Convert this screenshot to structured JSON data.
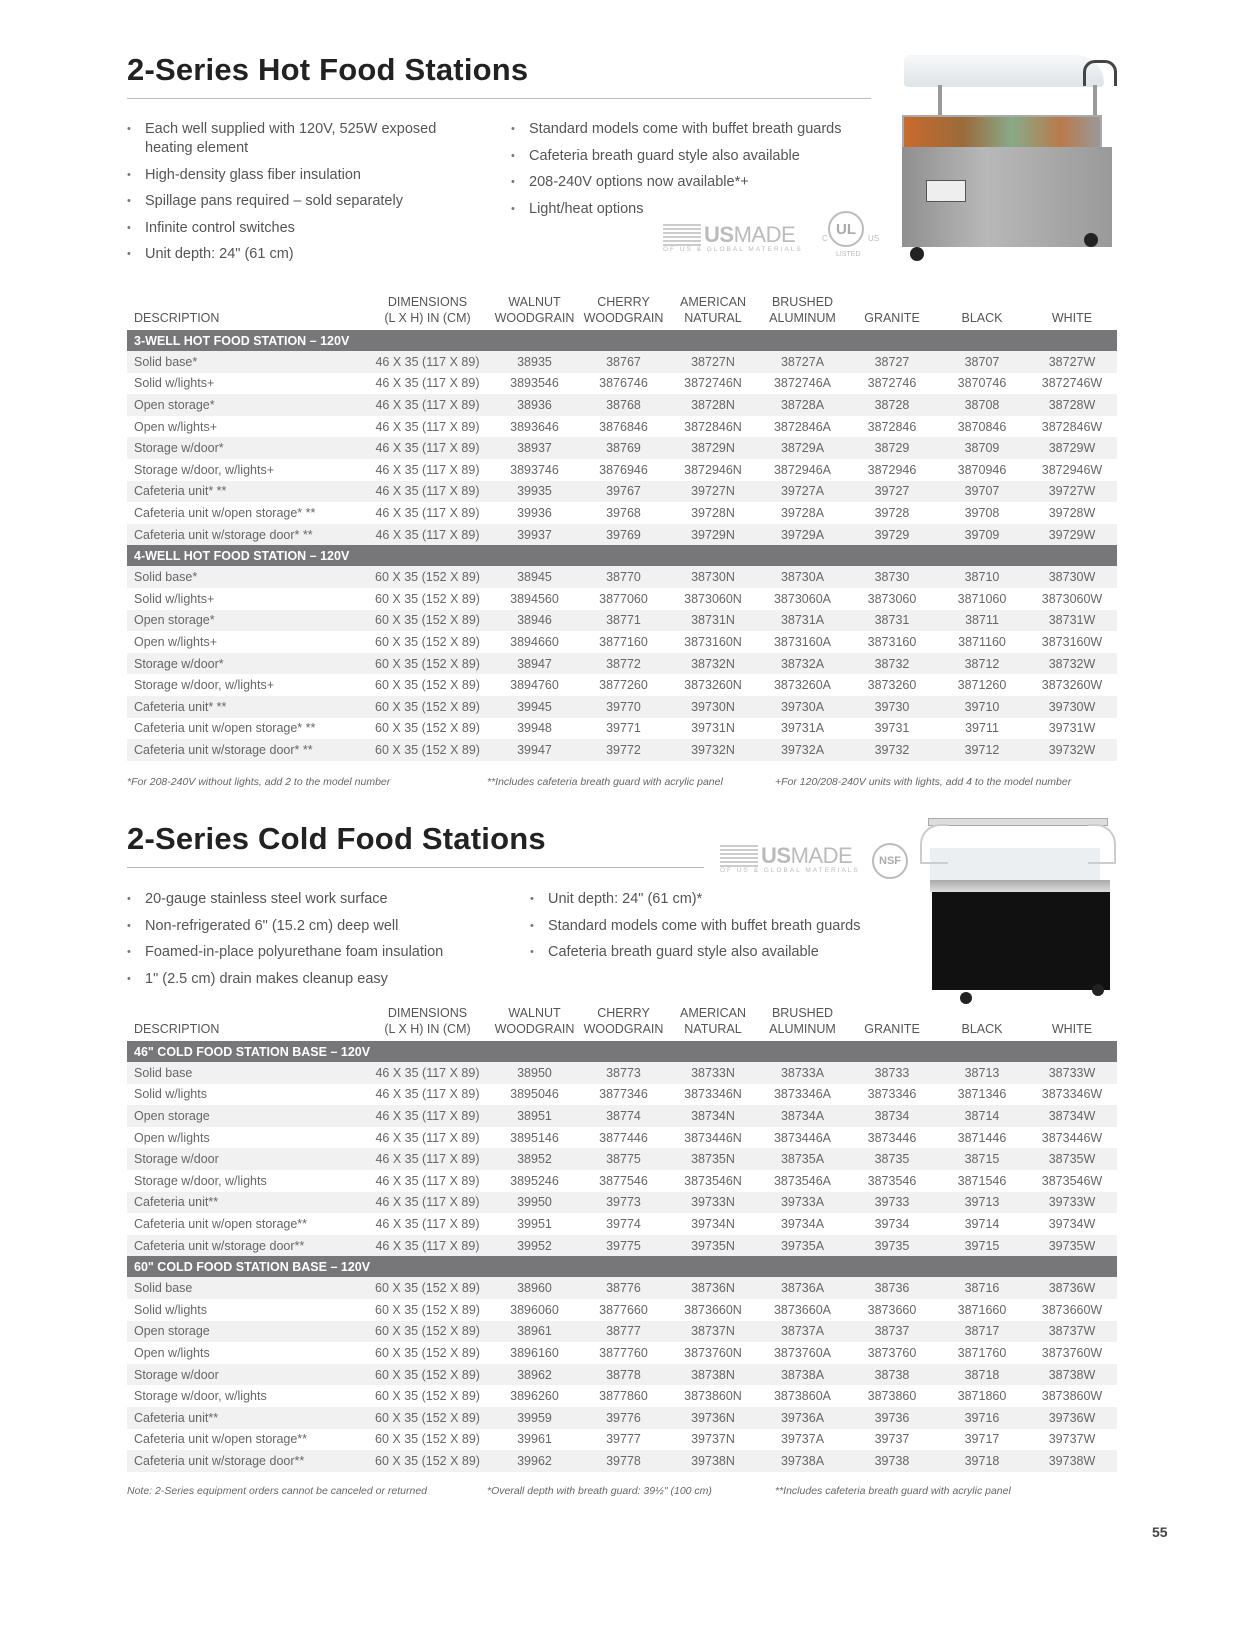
{
  "hot": {
    "title": "2-Series  Hot Food Stations",
    "bullets_left": [
      "Each well supplied with 120V, 525W exposed heating element",
      "High-density glass fiber insulation",
      "Spillage pans required – sold separately",
      "Infinite control switches",
      "Unit depth: 24\" (61 cm)"
    ],
    "bullets_right": [
      "Standard models come with buffet breath guards",
      "Cafeteria breath guard style also available",
      "208-240V options now available*+",
      "Light/heat options"
    ],
    "logos": {
      "usmade_us": "US",
      "usmade_made": "MADE",
      "usmade_sub": "OF US & GLOBAL MATERIALS",
      "ul": "UL",
      "ul_c": "C",
      "ul_us": "US",
      "ul_listed": "LISTED"
    },
    "footnotes": [
      "*For 208-240V without lights, add 2 to the model number",
      "**Includes cafeteria breath guard with acrylic panel",
      "+For 120/208-240V units with lights, add 4 to the model number"
    ],
    "sections": [
      {
        "title": "3-WELL HOT FOOD STATION – 120V",
        "rows": [
          [
            "Solid base*",
            "46 X 35 (117 X 89)",
            "38935",
            "38767",
            "38727N",
            "38727A",
            "38727",
            "38707",
            "38727W"
          ],
          [
            "Solid w/lights+",
            "46 X 35 (117 X 89)",
            "3893546",
            "3876746",
            "3872746N",
            "3872746A",
            "3872746",
            "3870746",
            "3872746W"
          ],
          [
            "Open storage*",
            "46 X 35 (117 X 89)",
            "38936",
            "38768",
            "38728N",
            "38728A",
            "38728",
            "38708",
            "38728W"
          ],
          [
            "Open w/lights+",
            "46 X 35 (117 X 89)",
            "3893646",
            "3876846",
            "3872846N",
            "3872846A",
            "3872846",
            "3870846",
            "3872846W"
          ],
          [
            "Storage w/door*",
            "46 X 35 (117 X 89)",
            "38937",
            "38769",
            "38729N",
            "38729A",
            "38729",
            "38709",
            "38729W"
          ],
          [
            "Storage w/door, w/lights+",
            "46 X 35 (117 X 89)",
            "3893746",
            "3876946",
            "3872946N",
            "3872946A",
            "3872946",
            "3870946",
            "3872946W"
          ],
          [
            "Cafeteria unit* **",
            "46 X 35 (117 X 89)",
            "39935",
            "39767",
            "39727N",
            "39727A",
            "39727",
            "39707",
            "39727W"
          ],
          [
            "Cafeteria unit w/open storage* **",
            "46 X 35 (117 X 89)",
            "39936",
            "39768",
            "39728N",
            "39728A",
            "39728",
            "39708",
            "39728W"
          ],
          [
            "Cafeteria unit w/storage door* **",
            "46 X 35 (117 X 89)",
            "39937",
            "39769",
            "39729N",
            "39729A",
            "39729",
            "39709",
            "39729W"
          ]
        ]
      },
      {
        "title": "4-WELL HOT FOOD STATION – 120V",
        "rows": [
          [
            "Solid base*",
            "60 X 35 (152 X 89)",
            "38945",
            "38770",
            "38730N",
            "38730A",
            "38730",
            "38710",
            "38730W"
          ],
          [
            "Solid w/lights+",
            "60 X 35 (152 X 89)",
            "3894560",
            "3877060",
            "3873060N",
            "3873060A",
            "3873060",
            "3871060",
            "3873060W"
          ],
          [
            "Open storage*",
            "60 X 35 (152 X 89)",
            "38946",
            "38771",
            "38731N",
            "38731A",
            "38731",
            "38711",
            "38731W"
          ],
          [
            "Open w/lights+",
            "60 X 35 (152 X 89)",
            "3894660",
            "3877160",
            "3873160N",
            "3873160A",
            "3873160",
            "3871160",
            "3873160W"
          ],
          [
            "Storage w/door*",
            "60 X 35 (152 X 89)",
            "38947",
            "38772",
            "38732N",
            "38732A",
            "38732",
            "38712",
            "38732W"
          ],
          [
            "Storage w/door, w/lights+",
            "60 X 35 (152 X 89)",
            "3894760",
            "3877260",
            "3873260N",
            "3873260A",
            "3873260",
            "3871260",
            "3873260W"
          ],
          [
            "Cafeteria unit* **",
            "60 X 35 (152 X 89)",
            "39945",
            "39770",
            "39730N",
            "39730A",
            "39730",
            "39710",
            "39730W"
          ],
          [
            "Cafeteria unit w/open storage* **",
            "60 X 35 (152 X 89)",
            "39948",
            "39771",
            "39731N",
            "39731A",
            "39731",
            "39711",
            "39731W"
          ],
          [
            "Cafeteria unit w/storage door* **",
            "60 X 35 (152 X 89)",
            "39947",
            "39772",
            "39732N",
            "39732A",
            "39732",
            "39712",
            "39732W"
          ]
        ]
      }
    ]
  },
  "columns": [
    [
      "DESCRIPTION"
    ],
    [
      "DIMENSIONS",
      "(L X H) IN (CM)"
    ],
    [
      "WALNUT",
      "WOODGRAIN"
    ],
    [
      "CHERRY",
      "WOODGRAIN"
    ],
    [
      "AMERICAN",
      "NATURAL"
    ],
    [
      "BRUSHED",
      "ALUMINUM"
    ],
    [
      "GRANITE"
    ],
    [
      "BLACK"
    ],
    [
      "WHITE"
    ]
  ],
  "cold": {
    "title": "2-Series Cold Food Stations",
    "bullets_left": [
      "20-gauge stainless steel work surface",
      "Non-refrigerated 6\" (15.2 cm) deep well",
      "Foamed-in-place polyurethane foam insulation",
      "1\" (2.5 cm) drain makes cleanup easy"
    ],
    "bullets_right": [
      "Unit depth: 24\" (61 cm)*",
      "Standard models come with buffet breath guards",
      "Cafeteria breath guard style also available"
    ],
    "logos": {
      "usmade_us": "US",
      "usmade_made": "MADE",
      "usmade_sub": "OF US & GLOBAL MATERIALS",
      "nsf": "NSF"
    },
    "footnotes": [
      "Note: 2-Series equipment orders cannot be canceled or returned",
      "*Overall depth with breath guard: 39½\" (100 cm)",
      "**Includes cafeteria breath guard with acrylic panel"
    ],
    "sections": [
      {
        "title": "46\" COLD FOOD STATION BASE – 120V",
        "rows": [
          [
            "Solid base",
            "46 X 35 (117 X 89)",
            "38950",
            "38773",
            "38733N",
            "38733A",
            "38733",
            "38713",
            "38733W"
          ],
          [
            "Solid w/lights",
            "46 X 35 (117 X 89)",
            "3895046",
            "3877346",
            "3873346N",
            "3873346A",
            "3873346",
            "3871346",
            "3873346W"
          ],
          [
            "Open storage",
            "46 X 35 (117 X 89)",
            "38951",
            "38774",
            "38734N",
            "38734A",
            "38734",
            "38714",
            "38734W"
          ],
          [
            "Open w/lights",
            "46 X 35 (117 X 89)",
            "3895146",
            "3877446",
            "3873446N",
            "3873446A",
            "3873446",
            "3871446",
            "3873446W"
          ],
          [
            "Storage w/door",
            "46 X 35 (117 X 89)",
            "38952",
            "38775",
            "38735N",
            "38735A",
            "38735",
            "38715",
            "38735W"
          ],
          [
            "Storage w/door, w/lights",
            "46 X 35 (117 X 89)",
            "3895246",
            "3877546",
            "3873546N",
            "3873546A",
            "3873546",
            "3871546",
            "3873546W"
          ],
          [
            "Cafeteria unit**",
            "46 X 35 (117 X 89)",
            "39950",
            "39773",
            "39733N",
            "39733A",
            "39733",
            "39713",
            "39733W"
          ],
          [
            "Cafeteria unit w/open storage**",
            "46 X 35 (117 X 89)",
            "39951",
            "39774",
            "39734N",
            "39734A",
            "39734",
            "39714",
            "39734W"
          ],
          [
            "Cafeteria unit w/storage door**",
            "46 X 35 (117 X 89)",
            "39952",
            "39775",
            "39735N",
            "39735A",
            "39735",
            "39715",
            "39735W"
          ]
        ]
      },
      {
        "title": "60\" COLD FOOD STATION BASE – 120V",
        "rows": [
          [
            "Solid base",
            "60 X 35 (152 X 89)",
            "38960",
            "38776",
            "38736N",
            "38736A",
            "38736",
            "38716",
            "38736W"
          ],
          [
            "Solid w/lights",
            "60 X 35 (152 X 89)",
            "3896060",
            "3877660",
            "3873660N",
            "3873660A",
            "3873660",
            "3871660",
            "3873660W"
          ],
          [
            "Open storage",
            "60 X 35 (152 X 89)",
            "38961",
            "38777",
            "38737N",
            "38737A",
            "38737",
            "38717",
            "38737W"
          ],
          [
            "Open w/lights",
            "60 X 35 (152 X 89)",
            "3896160",
            "3877760",
            "3873760N",
            "3873760A",
            "3873760",
            "3871760",
            "3873760W"
          ],
          [
            "Storage w/door",
            "60 X 35 (152 X 89)",
            "38962",
            "38778",
            "38738N",
            "38738A",
            "38738",
            "38718",
            "38738W"
          ],
          [
            "Storage w/door, w/lights",
            "60 X 35 (152 X 89)",
            "3896260",
            "3877860",
            "3873860N",
            "3873860A",
            "3873860",
            "3871860",
            "3873860W"
          ],
          [
            "Cafeteria unit**",
            "60 X 35 (152 X 89)",
            "39959",
            "39776",
            "39736N",
            "39736A",
            "39736",
            "39716",
            "39736W"
          ],
          [
            "Cafeteria unit w/open storage**",
            "60 X 35 (152 X 89)",
            "39961",
            "39777",
            "39737N",
            "39737A",
            "39737",
            "39717",
            "39737W"
          ],
          [
            "Cafeteria unit w/storage door**",
            "60 X 35 (152 X 89)",
            "39962",
            "39778",
            "39738N",
            "39738A",
            "39738",
            "39718",
            "39738W"
          ]
        ]
      }
    ]
  },
  "page_number": "55"
}
